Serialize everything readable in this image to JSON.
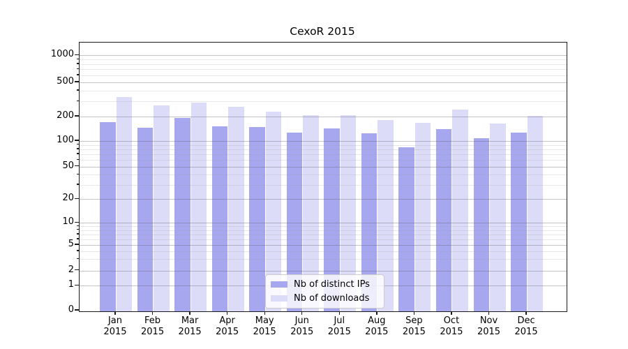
{
  "chart_data": {
    "type": "bar",
    "title": "CexoR 2015",
    "categories": [
      "Jan",
      "Feb",
      "Mar",
      "Apr",
      "May",
      "Jun",
      "Jul",
      "Aug",
      "Sep",
      "Oct",
      "Nov",
      "Dec"
    ],
    "category_year": "2015",
    "series": [
      {
        "name": "Nb of distinct IPs",
        "color": "#a7a7ef",
        "values": [
          170,
          147,
          194,
          152,
          149,
          128,
          142,
          125,
          85,
          141,
          108,
          126
        ]
      },
      {
        "name": "Nb of downloads",
        "color": "#dcdcf9",
        "values": [
          340,
          272,
          289,
          258,
          229,
          209,
          207,
          181,
          169,
          240,
          164,
          204
        ]
      }
    ],
    "yscale": "symlog",
    "ylim": [
      0,
      1400
    ],
    "ytick_values": [
      0,
      1,
      2,
      5,
      10,
      20,
      50,
      100,
      200,
      500,
      1000
    ],
    "ytick_labels": [
      "0",
      "1",
      "2",
      "5",
      "10",
      "20",
      "50",
      "100",
      "200",
      "500",
      "1000"
    ],
    "minor_ytick_values": [
      3,
      4,
      6,
      7,
      8,
      9,
      30,
      40,
      60,
      70,
      80,
      90,
      300,
      400,
      600,
      700,
      800,
      900
    ],
    "grid": true,
    "legend": {
      "position": "lower center",
      "entries": [
        "Nb of distinct IPs",
        "Nb of downloads"
      ]
    },
    "xlabel": "",
    "ylabel": ""
  }
}
